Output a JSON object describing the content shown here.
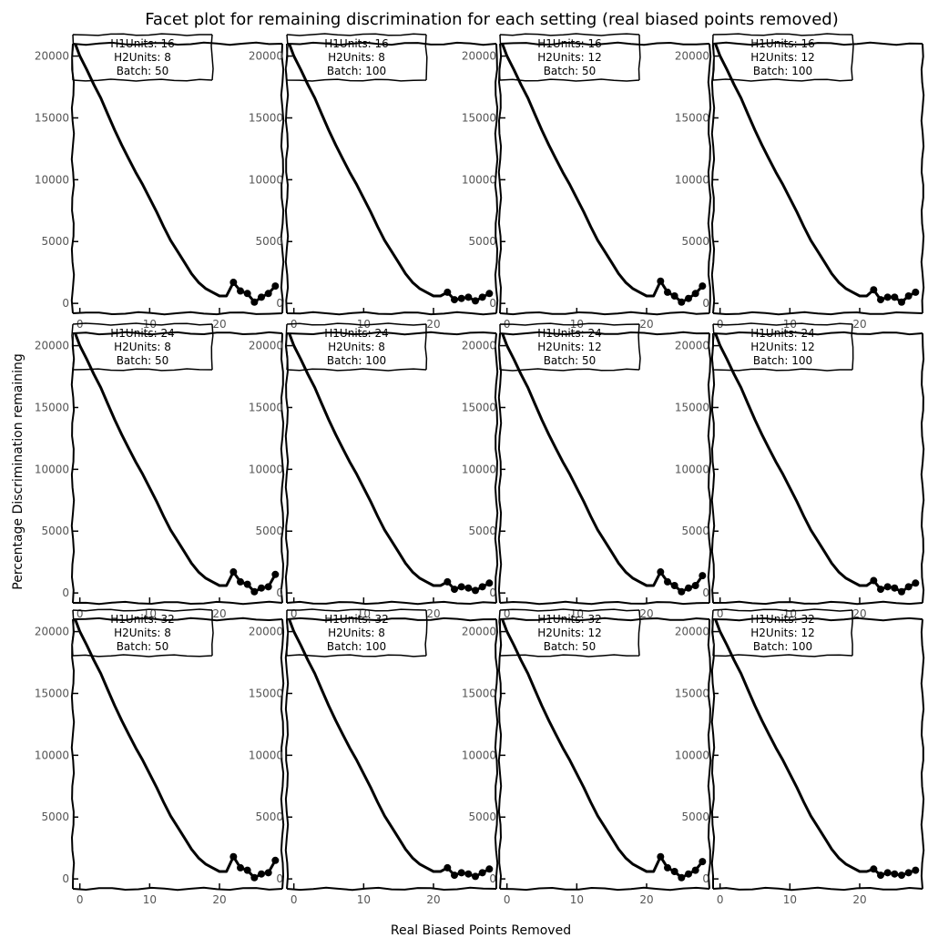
{
  "figure": {
    "title": "Facet plot for remaining discrimination for each setting (real biased points removed)",
    "xlabel": "Real Biased Points Removed",
    "ylabel": "Percentage Discrimination remaining"
  },
  "colors": {
    "line": "#000000",
    "text": "#000000",
    "tick": "#555555",
    "background": "#ffffff"
  },
  "chart_data": {
    "type": "line",
    "layout": "facet grid, 3 rows by 4 columns",
    "xlim": [
      -1,
      29
    ],
    "ylim": [
      -800,
      21000
    ],
    "xticks": [
      0,
      10,
      20
    ],
    "yticks": [
      0,
      5000,
      10000,
      15000,
      20000
    ],
    "grid": false,
    "legend": "none",
    "label_prefixes": {
      "h1": "H1Units: ",
      "h2": "H2Units: ",
      "batch": "Batch: "
    },
    "smooth_x": [
      -1,
      0,
      1,
      2,
      3,
      4,
      5,
      6,
      7,
      8,
      9,
      10,
      11,
      12,
      13,
      14,
      15,
      16,
      17,
      18,
      19,
      20,
      21,
      22
    ],
    "smooth_y": [
      21500,
      20000,
      18900,
      17700,
      16600,
      15300,
      14000,
      12800,
      11700,
      10600,
      9600,
      8500,
      7400,
      6200,
      5100,
      4200,
      3300,
      2400,
      1700,
      1200,
      900,
      600,
      600,
      500
    ],
    "marker_x": [
      22,
      23,
      24,
      25,
      26,
      27,
      28
    ],
    "facets": [
      {
        "h1": 16,
        "h2": 8,
        "batch": 50,
        "end_y": [
          1700,
          1000,
          800,
          100,
          500,
          800,
          1400
        ]
      },
      {
        "h1": 16,
        "h2": 8,
        "batch": 100,
        "end_y": [
          900,
          300,
          400,
          500,
          200,
          500,
          800
        ]
      },
      {
        "h1": 16,
        "h2": 12,
        "batch": 50,
        "end_y": [
          1800,
          900,
          600,
          100,
          400,
          800,
          1400
        ]
      },
      {
        "h1": 16,
        "h2": 12,
        "batch": 100,
        "end_y": [
          1100,
          300,
          500,
          500,
          100,
          600,
          900
        ]
      },
      {
        "h1": 24,
        "h2": 8,
        "batch": 50,
        "end_y": [
          1700,
          900,
          700,
          100,
          400,
          500,
          1500
        ]
      },
      {
        "h1": 24,
        "h2": 8,
        "batch": 100,
        "end_y": [
          900,
          300,
          500,
          400,
          200,
          500,
          800
        ]
      },
      {
        "h1": 24,
        "h2": 12,
        "batch": 50,
        "end_y": [
          1700,
          900,
          600,
          100,
          400,
          600,
          1400
        ]
      },
      {
        "h1": 24,
        "h2": 12,
        "batch": 100,
        "end_y": [
          1000,
          300,
          500,
          400,
          100,
          500,
          800
        ]
      },
      {
        "h1": 32,
        "h2": 8,
        "batch": 50,
        "end_y": [
          1800,
          900,
          700,
          100,
          400,
          500,
          1500
        ]
      },
      {
        "h1": 32,
        "h2": 8,
        "batch": 100,
        "end_y": [
          900,
          300,
          500,
          400,
          200,
          500,
          800
        ]
      },
      {
        "h1": 32,
        "h2": 12,
        "batch": 50,
        "end_y": [
          1800,
          900,
          600,
          100,
          400,
          700,
          1400
        ]
      },
      {
        "h1": 32,
        "h2": 12,
        "batch": 100,
        "end_y": [
          800,
          300,
          500,
          400,
          300,
          500,
          700
        ]
      }
    ]
  }
}
